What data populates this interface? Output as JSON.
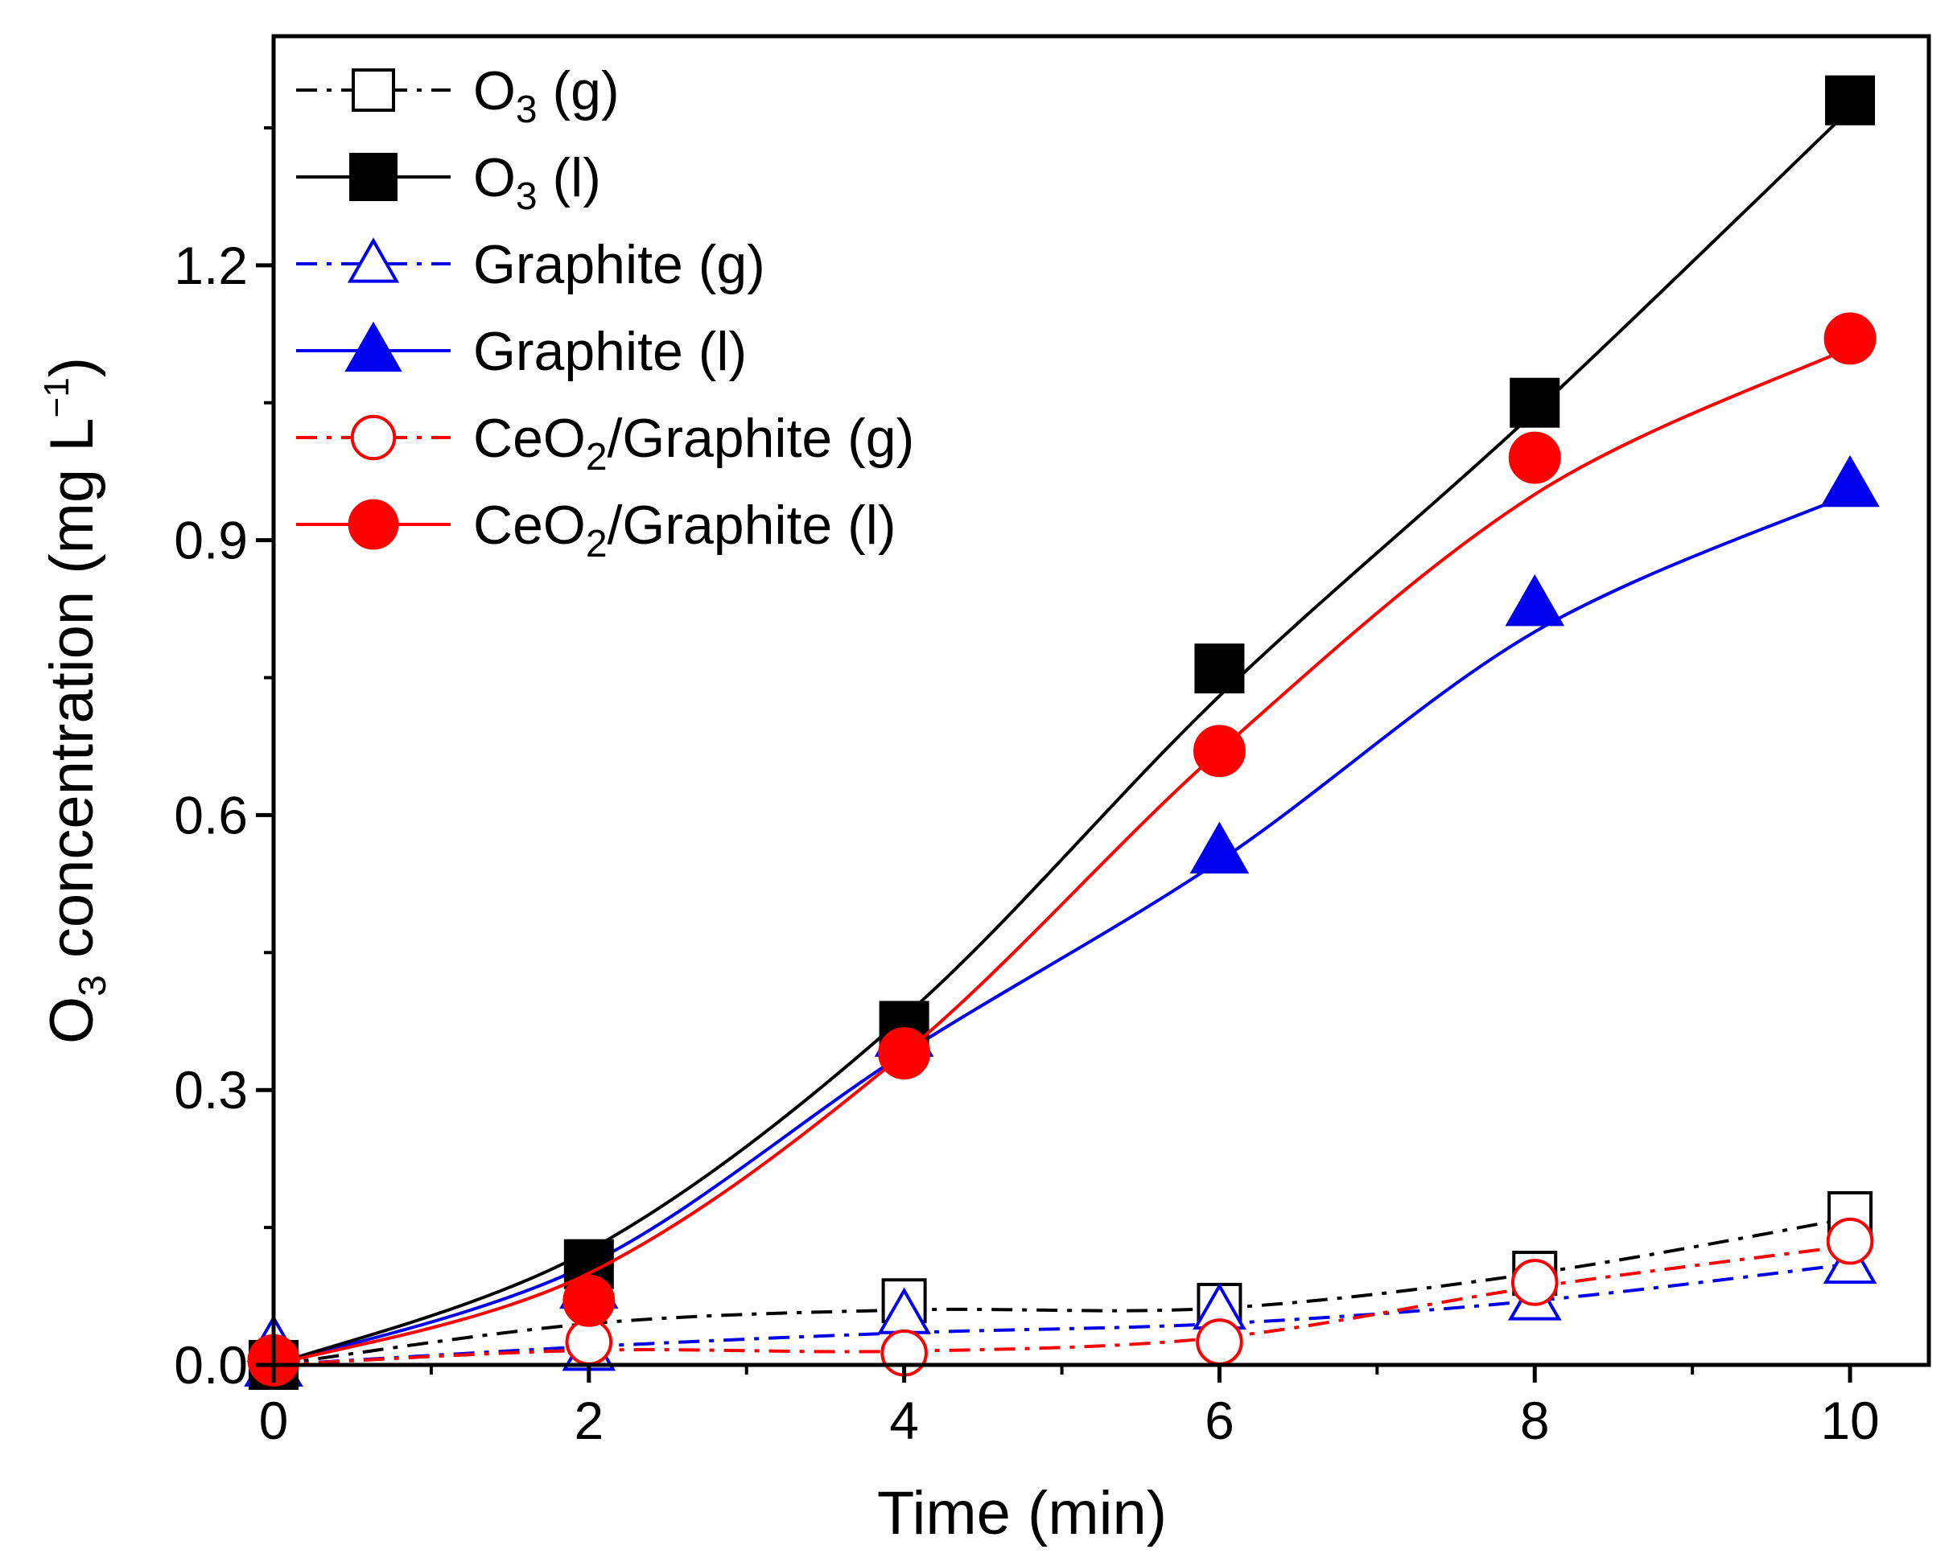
{
  "chart_data": {
    "type": "line",
    "title": "",
    "xlabel": "Time (min)",
    "ylabel": {
      "main": "O",
      "sub": "3",
      "rest": " concentration (mg L",
      "sup": "−1",
      "close": ")"
    },
    "xlim": [
      0,
      10.5
    ],
    "ylim": [
      0,
      1.45
    ],
    "xticks": [
      0,
      2,
      4,
      6,
      8,
      10
    ],
    "yticks": [
      0.0,
      0.3,
      0.6,
      0.9,
      1.2
    ],
    "xtick_labels": [
      "0",
      "2",
      "4",
      "6",
      "8",
      "10"
    ],
    "ytick_labels": [
      "0.0",
      "0.3",
      "0.6",
      "0.9",
      "1.2"
    ],
    "x": [
      0,
      2,
      4,
      6,
      8,
      10
    ],
    "legend_position": "top-left",
    "grid": false,
    "series": [
      {
        "name": "O3 (g)",
        "label": {
          "main": "O",
          "sub": "3",
          "rest": " (g)"
        },
        "color": "#000000",
        "line": "dashdot",
        "marker": "square",
        "filled": false,
        "values": [
          0.0,
          0.1,
          0.07,
          0.065,
          0.1,
          0.165
        ],
        "fit": [
          0.0,
          0.045,
          0.06,
          0.062,
          0.1,
          0.16
        ]
      },
      {
        "name": "O3 (l)",
        "label": {
          "main": "O",
          "sub": "3",
          "rest": " (l)"
        },
        "color": "#000000",
        "line": "solid",
        "marker": "square",
        "filled": true,
        "values": [
          0.0,
          0.11,
          0.37,
          0.76,
          1.05,
          1.38
        ],
        "fit": [
          0.0,
          0.125,
          0.38,
          0.73,
          1.04,
          1.37
        ]
      },
      {
        "name": "Graphite (g)",
        "label": {
          "main": "Graphite (g)",
          "sub": "",
          "rest": ""
        },
        "color": "#0000ee",
        "line": "dashdot",
        "marker": "triangle",
        "filled": false,
        "values": [
          0.025,
          0.015,
          0.055,
          0.06,
          0.07,
          0.11
        ],
        "fit": [
          0.0,
          0.02,
          0.035,
          0.045,
          0.07,
          0.11
        ]
      },
      {
        "name": "Graphite (l)",
        "label": {
          "main": "Graphite (l)",
          "sub": "",
          "rest": ""
        },
        "color": "#0000ee",
        "line": "solid",
        "marker": "triangle",
        "filled": true,
        "values": [
          0.0,
          0.085,
          0.36,
          0.56,
          0.83,
          0.96
        ],
        "fit": [
          0.0,
          0.11,
          0.34,
          0.55,
          0.8,
          0.95
        ]
      },
      {
        "name": "CeO2/Graphite (g)",
        "label": {
          "main": "CeO",
          "sub": "2",
          "rest": "/Graphite (g)"
        },
        "color": "#ff0000",
        "line": "dashdot",
        "marker": "circle",
        "filled": false,
        "values": [
          0.0,
          0.025,
          0.013,
          0.025,
          0.09,
          0.135
        ],
        "fit": [
          0.0,
          0.016,
          0.015,
          0.03,
          0.085,
          0.13
        ]
      },
      {
        "name": "CeO2/Graphite (l)",
        "label": {
          "main": "CeO",
          "sub": "2",
          "rest": "/Graphite (l)"
        },
        "color": "#ff0000",
        "line": "solid",
        "marker": "circle",
        "filled": true,
        "values": [
          0.005,
          0.07,
          0.34,
          0.67,
          0.99,
          1.12
        ],
        "fit": [
          0.0,
          0.1,
          0.34,
          0.67,
          0.95,
          1.11
        ]
      }
    ]
  }
}
